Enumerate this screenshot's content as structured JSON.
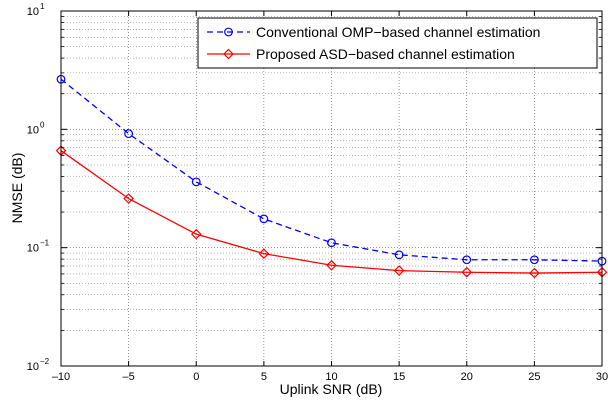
{
  "chart_data": {
    "type": "line",
    "title": "",
    "xlabel": "Uplink SNR (dB)",
    "ylabel": "NMSE (dB)",
    "xlim": [
      -10,
      30
    ],
    "ylim": [
      0.01,
      10
    ],
    "yscale": "log",
    "grid": true,
    "legend_position": "top-right",
    "x_ticks": [
      -10,
      -5,
      0,
      5,
      10,
      15,
      20,
      25,
      30
    ],
    "y_ticks": [
      {
        "value": 0.01,
        "base": "10",
        "exp": "−2"
      },
      {
        "value": 0.1,
        "base": "10",
        "exp": "−1"
      },
      {
        "value": 1,
        "base": "10",
        "exp": "0"
      },
      {
        "value": 10,
        "base": "10",
        "exp": "1"
      }
    ],
    "x": [
      -10,
      -5,
      0,
      5,
      10,
      15,
      20,
      25,
      30
    ],
    "series": [
      {
        "name": "Conventional OMP−based channel estimation",
        "color": "#0000ff",
        "line_style": "dashed",
        "marker": "circle",
        "values": [
          2.65,
          0.92,
          0.36,
          0.175,
          0.11,
          0.087,
          0.079,
          0.079,
          0.077
        ]
      },
      {
        "name": "Proposed ASD−based channel estimation",
        "color": "#ff0000",
        "line_style": "solid",
        "marker": "diamond",
        "values": [
          0.66,
          0.26,
          0.13,
          0.089,
          0.071,
          0.064,
          0.062,
          0.061,
          0.062
        ]
      }
    ]
  }
}
